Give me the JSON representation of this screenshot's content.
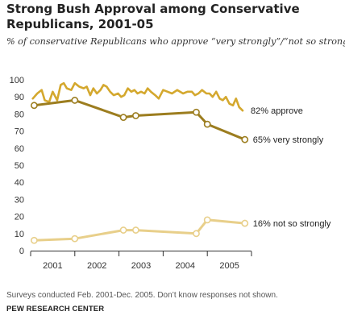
{
  "title": "Strong Bush Approval among Conservative Republicans, 2001-05",
  "subtitle": "% of conservative Republicans who approve “very strongly”/“not so strongly”",
  "note": "Surveys conducted Feb. 2001-Dec. 2005. Don’t know responses not shown.",
  "source": "PEW RESEARCH CENTER",
  "chart_data": {
    "type": "line",
    "title": "Strong Bush Approval among Conservative Republicans, 2001-05",
    "xlabel": "",
    "ylabel": "",
    "ylim": [
      0,
      100
    ],
    "yticks": [
      0,
      10,
      20,
      30,
      40,
      50,
      60,
      70,
      80,
      90,
      100
    ],
    "xticks": [
      "2001",
      "2002",
      "2003",
      "2004",
      "2005"
    ],
    "xlim": [
      2001.0,
      2006.0
    ],
    "grid": false,
    "legend": "direct labels at right",
    "colors": {
      "approve": "#d4a82e",
      "very_strongly": "#9c7d1f",
      "not_so_strongly": "#e8cf8a"
    },
    "series": [
      {
        "name": "82% approve",
        "key": "approve",
        "markers": false,
        "x": [
          2001.05,
          2001.15,
          2001.25,
          2001.32,
          2001.42,
          2001.5,
          2001.6,
          2001.68,
          2001.75,
          2001.82,
          2001.92,
          2002.0,
          2002.1,
          2002.2,
          2002.27,
          2002.35,
          2002.42,
          2002.5,
          2002.58,
          2002.65,
          2002.72,
          2002.8,
          2002.88,
          2002.98,
          2003.05,
          2003.12,
          2003.2,
          2003.28,
          2003.35,
          2003.42,
          2003.5,
          2003.58,
          2003.65,
          2003.72,
          2003.82,
          2003.9,
          2004.0,
          2004.1,
          2004.2,
          2004.32,
          2004.45,
          2004.55,
          2004.65,
          2004.72,
          2004.8,
          2004.88,
          2004.98,
          2005.05,
          2005.12,
          2005.2,
          2005.28,
          2005.35,
          2005.42,
          2005.5,
          2005.58,
          2005.65,
          2005.72,
          2005.8
        ],
        "y": [
          89,
          92,
          94,
          88,
          87,
          93,
          88,
          97,
          98,
          95,
          94,
          98,
          96,
          95,
          96,
          91,
          95,
          92,
          94,
          97,
          96,
          93,
          91,
          92,
          90,
          91,
          95,
          93,
          94,
          92,
          93,
          92,
          95,
          93,
          91,
          89,
          94,
          93,
          92,
          94,
          92,
          93,
          93,
          91,
          92,
          94,
          92,
          92,
          90,
          93,
          89,
          88,
          90,
          86,
          85,
          89,
          84,
          82
        ]
      },
      {
        "name": "65% very strongly",
        "key": "very_strongly",
        "markers": true,
        "x": [
          2001.08,
          2002.0,
          2003.1,
          2003.38,
          2004.75,
          2005.0,
          2005.85
        ],
        "y": [
          85,
          88,
          78,
          79,
          81,
          74,
          65
        ]
      },
      {
        "name": "16% not so strongly",
        "key": "not_so_strongly",
        "markers": true,
        "x": [
          2001.08,
          2002.0,
          2003.1,
          2003.38,
          2004.75,
          2005.0,
          2005.85
        ],
        "y": [
          6,
          7,
          12,
          12,
          10,
          18,
          16
        ]
      }
    ]
  }
}
